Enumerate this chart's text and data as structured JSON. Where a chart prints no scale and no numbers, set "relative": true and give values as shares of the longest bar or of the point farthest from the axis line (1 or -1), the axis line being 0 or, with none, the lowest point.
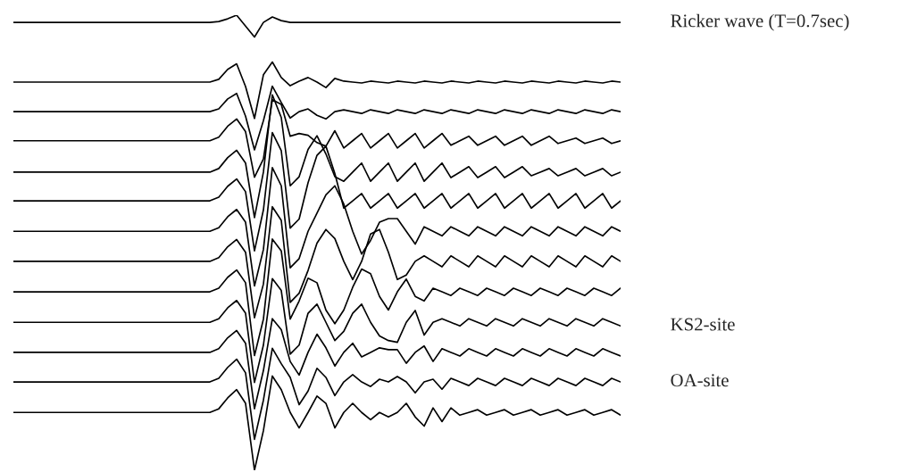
{
  "chart_data": {
    "type": "line",
    "relative": true,
    "categories": [
      null,
      null,
      null,
      null,
      null,
      null,
      null,
      null,
      null,
      null,
      null,
      null,
      null,
      null,
      null,
      null,
      null,
      null,
      null,
      null,
      null,
      null,
      null,
      null,
      null,
      null,
      null,
      null,
      null,
      null,
      null,
      null,
      null,
      null,
      null,
      null,
      null,
      null,
      null,
      null,
      null,
      null,
      null,
      null,
      null,
      null,
      null,
      null,
      null,
      null,
      null,
      null,
      null,
      null,
      null,
      null,
      null,
      null,
      null,
      null,
      null,
      null,
      null,
      null,
      null,
      null,
      null,
      null,
      null
    ],
    "series": [
      {
        "name": "Ricker wave (T=0.7sec)",
        "color": "#000000",
        "values": [
          0.984,
          0.984,
          0.984,
          0.984,
          0.984,
          0.984,
          0.984,
          0.984,
          0.984,
          0.984,
          0.984,
          0.984,
          0.984,
          0.984,
          0.984,
          0.984,
          0.984,
          0.984,
          0.984,
          0.984,
          0.984,
          0.984,
          0.984,
          0.986,
          0.992,
          1.0,
          0.976,
          0.952,
          0.984,
          0.996,
          0.988,
          0.984,
          0.984,
          0.984,
          0.984,
          0.984,
          0.984,
          0.984,
          0.984,
          0.984,
          0.984,
          0.984,
          0.984,
          0.984,
          0.984,
          0.984,
          0.984,
          0.984,
          0.984,
          0.984,
          0.984,
          0.984,
          0.984,
          0.984,
          0.984,
          0.984,
          0.984,
          0.984,
          0.984,
          0.984,
          0.984,
          0.984,
          0.984,
          0.984,
          0.984,
          0.984,
          0.984,
          0.984,
          0.984
        ]
      },
      {
        "color": "#000000",
        "values": [
          0.853,
          0.853,
          0.853,
          0.853,
          0.853,
          0.853,
          0.853,
          0.853,
          0.853,
          0.853,
          0.853,
          0.853,
          0.853,
          0.853,
          0.853,
          0.853,
          0.853,
          0.853,
          0.853,
          0.853,
          0.853,
          0.853,
          0.853,
          0.859,
          0.881,
          0.893,
          0.843,
          0.773,
          0.869,
          0.897,
          0.863,
          0.845,
          0.855,
          0.863,
          0.853,
          0.841,
          0.861,
          0.855,
          0.853,
          0.851,
          0.855,
          0.853,
          0.851,
          0.855,
          0.853,
          0.851,
          0.855,
          0.853,
          0.851,
          0.855,
          0.853,
          0.851,
          0.855,
          0.853,
          0.851,
          0.855,
          0.853,
          0.851,
          0.855,
          0.853,
          0.851,
          0.855,
          0.853,
          0.851,
          0.855,
          0.853,
          0.851,
          0.855,
          0.853
        ]
      },
      {
        "color": "#000000",
        "values": [
          0.788,
          0.788,
          0.788,
          0.788,
          0.788,
          0.788,
          0.788,
          0.788,
          0.788,
          0.788,
          0.788,
          0.788,
          0.788,
          0.788,
          0.788,
          0.788,
          0.788,
          0.788,
          0.788,
          0.788,
          0.788,
          0.788,
          0.788,
          0.794,
          0.816,
          0.828,
          0.778,
          0.704,
          0.768,
          0.844,
          0.808,
          0.774,
          0.788,
          0.794,
          0.78,
          0.772,
          0.788,
          0.792,
          0.788,
          0.784,
          0.792,
          0.788,
          0.784,
          0.792,
          0.788,
          0.784,
          0.792,
          0.788,
          0.784,
          0.792,
          0.788,
          0.784,
          0.792,
          0.788,
          0.784,
          0.792,
          0.788,
          0.784,
          0.792,
          0.788,
          0.784,
          0.792,
          0.788,
          0.784,
          0.792,
          0.788,
          0.784,
          0.792,
          0.788
        ]
      },
      {
        "color": "#000000",
        "values": [
          0.724,
          0.724,
          0.724,
          0.724,
          0.724,
          0.724,
          0.724,
          0.724,
          0.724,
          0.724,
          0.724,
          0.724,
          0.724,
          0.724,
          0.724,
          0.724,
          0.724,
          0.724,
          0.724,
          0.724,
          0.724,
          0.724,
          0.724,
          0.732,
          0.756,
          0.772,
          0.744,
          0.644,
          0.684,
          0.814,
          0.804,
          0.734,
          0.74,
          0.736,
          0.72,
          0.712,
          0.746,
          0.708,
          0.724,
          0.74,
          0.708,
          0.724,
          0.74,
          0.708,
          0.724,
          0.74,
          0.708,
          0.724,
          0.74,
          0.714,
          0.724,
          0.734,
          0.714,
          0.724,
          0.734,
          0.714,
          0.724,
          0.734,
          0.714,
          0.724,
          0.734,
          0.718,
          0.724,
          0.73,
          0.718,
          0.724,
          0.73,
          0.718,
          0.724
        ]
      },
      {
        "color": "#000000",
        "values": [
          0.655,
          0.655,
          0.655,
          0.655,
          0.655,
          0.655,
          0.655,
          0.655,
          0.655,
          0.655,
          0.655,
          0.655,
          0.655,
          0.655,
          0.655,
          0.655,
          0.655,
          0.655,
          0.655,
          0.655,
          0.655,
          0.655,
          0.655,
          0.663,
          0.687,
          0.703,
          0.675,
          0.555,
          0.655,
          0.825,
          0.775,
          0.625,
          0.645,
          0.705,
          0.735,
          0.695,
          0.645,
          0.635,
          0.655,
          0.675,
          0.635,
          0.655,
          0.675,
          0.635,
          0.655,
          0.675,
          0.635,
          0.655,
          0.675,
          0.643,
          0.655,
          0.667,
          0.643,
          0.655,
          0.667,
          0.643,
          0.655,
          0.667,
          0.647,
          0.655,
          0.663,
          0.647,
          0.655,
          0.663,
          0.647,
          0.655,
          0.663,
          0.647,
          0.655
        ]
      },
      {
        "color": "#000000",
        "values": [
          0.592,
          0.592,
          0.592,
          0.592,
          0.592,
          0.592,
          0.592,
          0.592,
          0.592,
          0.592,
          0.592,
          0.592,
          0.592,
          0.592,
          0.592,
          0.592,
          0.592,
          0.592,
          0.592,
          0.592,
          0.592,
          0.592,
          0.592,
          0.6,
          0.624,
          0.64,
          0.612,
          0.482,
          0.572,
          0.742,
          0.702,
          0.532,
          0.552,
          0.632,
          0.692,
          0.712,
          0.652,
          0.576,
          0.592,
          0.608,
          0.576,
          0.592,
          0.608,
          0.576,
          0.592,
          0.608,
          0.576,
          0.592,
          0.608,
          0.576,
          0.592,
          0.608,
          0.576,
          0.592,
          0.608,
          0.576,
          0.592,
          0.608,
          0.576,
          0.592,
          0.608,
          0.576,
          0.592,
          0.608,
          0.576,
          0.592,
          0.608,
          0.576,
          0.592
        ]
      },
      {
        "color": "#000000",
        "values": [
          0.525,
          0.525,
          0.525,
          0.525,
          0.525,
          0.525,
          0.525,
          0.525,
          0.525,
          0.525,
          0.525,
          0.525,
          0.525,
          0.525,
          0.525,
          0.525,
          0.525,
          0.525,
          0.525,
          0.525,
          0.525,
          0.525,
          0.525,
          0.533,
          0.557,
          0.573,
          0.545,
          0.405,
          0.485,
          0.665,
          0.625,
          0.445,
          0.465,
          0.525,
          0.565,
          0.605,
          0.625,
          0.585,
          0.525,
          0.475,
          0.505,
          0.545,
          0.553,
          0.553,
          0.525,
          0.497,
          0.535,
          0.525,
          0.515,
          0.535,
          0.525,
          0.515,
          0.535,
          0.525,
          0.515,
          0.535,
          0.525,
          0.515,
          0.535,
          0.525,
          0.515,
          0.535,
          0.525,
          0.515,
          0.535,
          0.525,
          0.515,
          0.535,
          0.525
        ]
      },
      {
        "color": "#000000",
        "values": [
          0.459,
          0.459,
          0.459,
          0.459,
          0.459,
          0.459,
          0.459,
          0.459,
          0.459,
          0.459,
          0.459,
          0.459,
          0.459,
          0.459,
          0.459,
          0.459,
          0.459,
          0.459,
          0.459,
          0.459,
          0.459,
          0.459,
          0.459,
          0.467,
          0.491,
          0.507,
          0.479,
          0.335,
          0.409,
          0.579,
          0.549,
          0.369,
          0.389,
          0.439,
          0.499,
          0.529,
          0.509,
          0.459,
          0.419,
          0.459,
          0.519,
          0.529,
          0.479,
          0.419,
          0.429,
          0.459,
          0.471,
          0.459,
          0.447,
          0.471,
          0.459,
          0.447,
          0.471,
          0.459,
          0.447,
          0.471,
          0.459,
          0.447,
          0.471,
          0.459,
          0.447,
          0.471,
          0.459,
          0.447,
          0.471,
          0.459,
          0.447,
          0.471,
          0.459
        ]
      },
      {
        "color": "#000000",
        "values": [
          0.392,
          0.392,
          0.392,
          0.392,
          0.392,
          0.392,
          0.392,
          0.392,
          0.392,
          0.392,
          0.392,
          0.392,
          0.392,
          0.392,
          0.392,
          0.392,
          0.392,
          0.392,
          0.392,
          0.392,
          0.392,
          0.392,
          0.392,
          0.4,
          0.424,
          0.44,
          0.412,
          0.252,
          0.332,
          0.508,
          0.482,
          0.332,
          0.372,
          0.422,
          0.412,
          0.352,
          0.322,
          0.352,
          0.402,
          0.442,
          0.432,
          0.382,
          0.352,
          0.392,
          0.42,
          0.382,
          0.372,
          0.4,
          0.392,
          0.384,
          0.4,
          0.392,
          0.384,
          0.4,
          0.392,
          0.384,
          0.4,
          0.392,
          0.384,
          0.4,
          0.392,
          0.384,
          0.4,
          0.392,
          0.384,
          0.4,
          0.392,
          0.384,
          0.4
        ]
      },
      {
        "name": "KS2-site",
        "color": "#000000",
        "values": [
          0.325,
          0.325,
          0.325,
          0.325,
          0.325,
          0.325,
          0.325,
          0.325,
          0.325,
          0.325,
          0.325,
          0.325,
          0.325,
          0.325,
          0.325,
          0.325,
          0.325,
          0.325,
          0.325,
          0.325,
          0.325,
          0.325,
          0.325,
          0.333,
          0.357,
          0.373,
          0.345,
          0.193,
          0.275,
          0.421,
          0.395,
          0.255,
          0.275,
          0.345,
          0.365,
          0.325,
          0.285,
          0.305,
          0.345,
          0.365,
          0.325,
          0.295,
          0.285,
          0.281,
          0.325,
          0.351,
          0.297,
          0.325,
          0.333,
          0.325,
          0.317,
          0.333,
          0.325,
          0.317,
          0.333,
          0.325,
          0.317,
          0.333,
          0.325,
          0.317,
          0.333,
          0.325,
          0.317,
          0.333,
          0.325,
          0.317,
          0.333,
          0.325,
          0.317
        ]
      },
      {
        "color": "#000000",
        "values": [
          0.259,
          0.259,
          0.259,
          0.259,
          0.259,
          0.259,
          0.259,
          0.259,
          0.259,
          0.259,
          0.259,
          0.259,
          0.259,
          0.259,
          0.259,
          0.259,
          0.259,
          0.259,
          0.259,
          0.259,
          0.259,
          0.259,
          0.259,
          0.267,
          0.291,
          0.307,
          0.279,
          0.135,
          0.219,
          0.333,
          0.309,
          0.239,
          0.209,
          0.259,
          0.299,
          0.269,
          0.229,
          0.259,
          0.279,
          0.249,
          0.259,
          0.269,
          0.265,
          0.265,
          0.235,
          0.259,
          0.273,
          0.239,
          0.267,
          0.259,
          0.251,
          0.267,
          0.259,
          0.251,
          0.267,
          0.259,
          0.251,
          0.267,
          0.259,
          0.251,
          0.267,
          0.259,
          0.251,
          0.267,
          0.259,
          0.251,
          0.267,
          0.259,
          0.251
        ]
      },
      {
        "name": "OA-site",
        "color": "#000000",
        "values": [
          0.194,
          0.194,
          0.194,
          0.194,
          0.194,
          0.194,
          0.194,
          0.194,
          0.194,
          0.194,
          0.194,
          0.194,
          0.194,
          0.194,
          0.194,
          0.194,
          0.194,
          0.194,
          0.194,
          0.194,
          0.194,
          0.194,
          0.194,
          0.202,
          0.226,
          0.244,
          0.214,
          0.068,
          0.154,
          0.268,
          0.234,
          0.204,
          0.144,
          0.174,
          0.224,
          0.204,
          0.164,
          0.194,
          0.21,
          0.194,
          0.184,
          0.2,
          0.194,
          0.206,
          0.194,
          0.17,
          0.194,
          0.2,
          0.178,
          0.202,
          0.194,
          0.186,
          0.202,
          0.194,
          0.186,
          0.202,
          0.194,
          0.186,
          0.202,
          0.194,
          0.186,
          0.202,
          0.194,
          0.186,
          0.202,
          0.194,
          0.186,
          0.202,
          0.194
        ]
      },
      {
        "color": "#000000",
        "values": [
          0.127,
          0.127,
          0.127,
          0.127,
          0.127,
          0.127,
          0.127,
          0.127,
          0.127,
          0.127,
          0.127,
          0.127,
          0.127,
          0.127,
          0.127,
          0.127,
          0.127,
          0.127,
          0.127,
          0.127,
          0.127,
          0.127,
          0.127,
          0.135,
          0.159,
          0.177,
          0.147,
          0.0,
          0.087,
          0.207,
          0.177,
          0.127,
          0.093,
          0.127,
          0.163,
          0.147,
          0.093,
          0.127,
          0.147,
          0.127,
          0.111,
          0.127,
          0.117,
          0.127,
          0.147,
          0.117,
          0.097,
          0.137,
          0.107,
          0.137,
          0.121,
          0.127,
          0.133,
          0.121,
          0.127,
          0.133,
          0.121,
          0.127,
          0.133,
          0.121,
          0.127,
          0.133,
          0.121,
          0.127,
          0.133,
          0.121,
          0.127,
          0.133,
          0.121
        ]
      }
    ]
  }
}
